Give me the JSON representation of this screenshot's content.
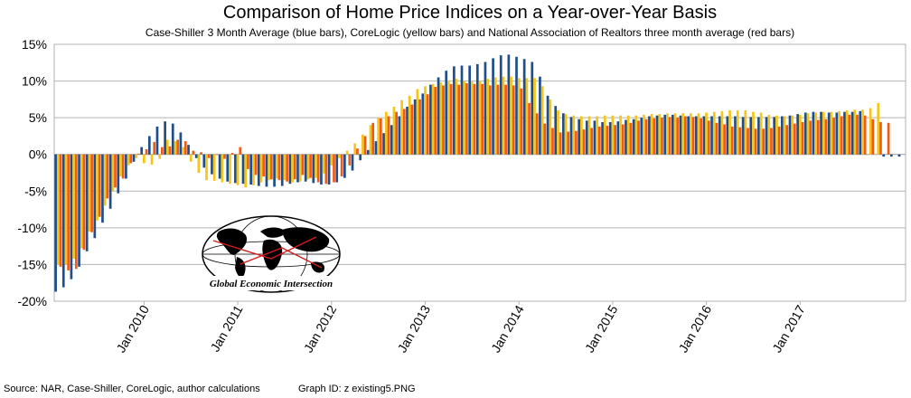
{
  "chart_data": {
    "type": "bar",
    "title": "Comparison of Home Price Indices on a Year-over-Year Basis",
    "subtitle": "Case-Shiller 3 Month Average (blue bars), CoreLogic (yellow bars) and National Association of Realtors three month average (red bars)",
    "ylim": [
      -20,
      15
    ],
    "y_ticks": [
      "15%",
      "10%",
      "5%",
      "0%",
      "-5%",
      "-10%",
      "-15%",
      "-20%"
    ],
    "y_tick_values": [
      15,
      10,
      5,
      0,
      -5,
      -10,
      -15,
      -20
    ],
    "x_tick_labels": [
      "Jan 2010",
      "Jan 2011",
      "Jan 2012",
      "Jan 2013",
      "Jan 2014",
      "Jan 2015",
      "Jan 2016",
      "Jan 2017"
    ],
    "x_tick_month_index": [
      11,
      23,
      35,
      47,
      59,
      71,
      83,
      95
    ],
    "grid": true,
    "first_month": "Feb 2009",
    "series": [
      {
        "name": "Case-Shiller 3 Month Average",
        "color": "#1f4e8c",
        "values": [
          -18.7,
          -18.1,
          -17.0,
          -15.3,
          -13.2,
          -11.4,
          -9.3,
          -7.4,
          -5.3,
          -3.3,
          -1.0,
          1.0,
          2.5,
          3.8,
          4.5,
          4.2,
          3.0,
          1.3,
          -0.5,
          -1.8,
          -2.7,
          -3.3,
          -3.7,
          -3.9,
          -4.0,
          -4.1,
          -4.3,
          -4.4,
          -4.4,
          -4.3,
          -4.0,
          -3.8,
          -3.7,
          -3.9,
          -4.1,
          -4.1,
          -3.8,
          -3.2,
          -2.2,
          -0.8,
          0.6,
          1.8,
          2.9,
          4.0,
          5.2,
          6.5,
          7.5,
          8.3,
          9.5,
          10.5,
          11.4,
          12.0,
          12.1,
          12.1,
          12.3,
          12.6,
          13.1,
          13.5,
          13.6,
          13.3,
          13.0,
          12.6,
          10.6,
          8.0,
          6.6,
          5.6,
          5.1,
          4.8,
          4.6,
          4.6,
          4.4,
          4.4,
          4.5,
          4.7,
          4.8,
          5.0,
          5.2,
          5.3,
          5.4,
          5.4,
          5.3,
          5.2,
          5.2,
          5.2,
          5.2,
          5.2,
          5.2,
          5.2,
          5.1,
          5.1,
          5.1,
          5.1,
          5.1,
          5.2,
          5.3,
          5.5,
          5.7,
          5.8,
          5.8,
          5.7,
          5.7,
          5.8,
          5.8,
          5.9,
          null,
          null,
          -0.3,
          -0.3,
          -0.3
        ]
      },
      {
        "name": "CoreLogic",
        "color": "#f5c518",
        "values": [
          -15.0,
          -15.0,
          -14.2,
          -12.8,
          -10.5,
          -9.0,
          -7.0,
          -5.0,
          -3.0,
          -1.5,
          -0.5,
          -1.2,
          -1.4,
          -0.6,
          2.0,
          1.8,
          1.0,
          -1.0,
          -2.5,
          -3.5,
          -3.6,
          -3.8,
          -4.0,
          -4.2,
          -4.5,
          -4.2,
          -3.8,
          -3.5,
          -3.3,
          -3.5,
          -3.8,
          -3.7,
          -3.4,
          -3.2,
          -2.6,
          -1.5,
          -0.5,
          0.5,
          1.5,
          2.7,
          4.0,
          5.0,
          5.8,
          6.5,
          7.4,
          8.0,
          8.9,
          9.3,
          9.6,
          9.8,
          10.1,
          10.3,
          10.0,
          9.9,
          10.0,
          10.3,
          10.5,
          10.6,
          10.6,
          10.4,
          10.4,
          10.4,
          9.3,
          7.5,
          6.0,
          5.5,
          5.3,
          5.2,
          5.2,
          5.2,
          5.3,
          5.3,
          5.3,
          5.3,
          5.3,
          5.4,
          5.5,
          5.5,
          5.6,
          5.6,
          5.6,
          5.6,
          5.6,
          5.7,
          5.8,
          5.9,
          6.0,
          6.0,
          6.0,
          5.8,
          5.7,
          5.4,
          5.3,
          5.2,
          5.3,
          5.4,
          5.6,
          5.7,
          5.8,
          5.8,
          5.9,
          6.0,
          6.1,
          6.1,
          6.3,
          7.0,
          null,
          null,
          null
        ]
      },
      {
        "name": "National Association of Realtors three month average",
        "color": "#ef5a1a",
        "values": [
          -15.3,
          -15.8,
          -15.6,
          -13.0,
          -10.6,
          -8.5,
          -6.0,
          -4.5,
          -3.3,
          -1.2,
          0.1,
          0.7,
          1.7,
          1.0,
          1.1,
          2.0,
          1.8,
          0.5,
          0.3,
          -0.5,
          0.0,
          -0.6,
          0.2,
          1.0,
          -2.0,
          -2.8,
          -3.0,
          -3.4,
          -3.5,
          -3.7,
          -3.4,
          -2.8,
          -3.2,
          -3.8,
          -4.0,
          -3.8,
          -3.0,
          -1.5,
          0.8,
          2.5,
          4.3,
          4.9,
          5.2,
          5.8,
          6.2,
          6.8,
          7.5,
          8.2,
          9.2,
          9.4,
          9.6,
          9.5,
          9.7,
          9.6,
          9.6,
          9.4,
          9.5,
          9.5,
          9.4,
          9.0,
          7.0,
          5.6,
          4.2,
          3.6,
          3.0,
          3.1,
          3.2,
          3.4,
          3.6,
          3.8,
          3.9,
          4.0,
          4.1,
          4.3,
          4.6,
          4.8,
          4.9,
          5.0,
          5.1,
          5.0,
          5.2,
          5.1,
          4.9,
          4.6,
          4.3,
          4.1,
          3.8,
          3.7,
          3.6,
          3.5,
          3.5,
          3.6,
          3.8,
          4.0,
          4.2,
          4.4,
          4.6,
          4.7,
          4.8,
          5.0,
          5.2,
          5.4,
          5.4,
          5.3,
          4.8,
          4.4,
          4.3,
          null,
          null
        ]
      }
    ]
  },
  "watermark": {
    "text": "Global Economic Intersection"
  },
  "footer": {
    "source": "Source: NAR, Case-Shiller, CoreLogic, author calculations",
    "graph_id": "Graph ID: z existing5.PNG"
  }
}
